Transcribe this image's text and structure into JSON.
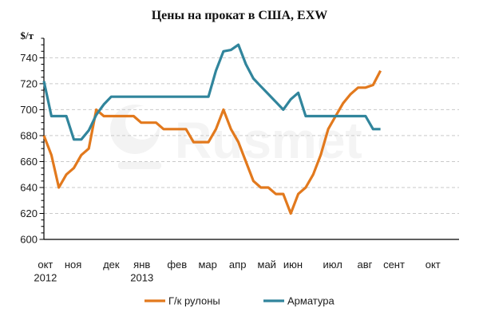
{
  "title": "Цены на прокат в США, EXW",
  "y_axis_unit": "$/т",
  "watermark_text": "Rusmet",
  "legend": [
    {
      "label": "Г/к рулоны",
      "color": "#E2791D"
    },
    {
      "label": "Арматура",
      "color": "#31859C"
    }
  ],
  "colors": {
    "background": "#FFFFFF",
    "gridline": "#C9C9C9",
    "axis": "#000000",
    "text": "#1A1A1A",
    "watermark": "#F3F3F3",
    "hot_rolled_orange": "#E2791D",
    "rebar_teal": "#31859C"
  },
  "chart_data": {
    "type": "line",
    "title": "Цены на прокат в США, EXW",
    "ylabel": "$/т",
    "frequency": "weekly",
    "ylim": [
      600,
      755
    ],
    "y_major_step": 20,
    "y_minor_step": 5,
    "grid": "horizontal dashed at 620-740",
    "legend_position": "bottom",
    "months": [
      {
        "label": "окт",
        "week": 0.2
      },
      {
        "label": "ноя",
        "week": 3.9
      },
      {
        "label": "дек",
        "week": 9.0
      },
      {
        "label": "янв",
        "week": 13.1
      },
      {
        "label": "фев",
        "week": 17.8
      },
      {
        "label": "мар",
        "week": 21.9
      },
      {
        "label": "апр",
        "week": 25.9
      },
      {
        "label": "май",
        "week": 29.8
      },
      {
        "label": "июн",
        "week": 33.3
      },
      {
        "label": "июл",
        "week": 38.6
      },
      {
        "label": "авг",
        "week": 42.9
      },
      {
        "label": "сент",
        "week": 46.8
      },
      {
        "label": "окт",
        "week": 52.0
      }
    ],
    "years": [
      {
        "label": "2012",
        "week": 0.2
      },
      {
        "label": "2013",
        "week": 13.1
      }
    ],
    "series": [
      {
        "name": "Г/к рулоны",
        "color": "#E2791D",
        "values": [
          680,
          665,
          640,
          650,
          655,
          665,
          670,
          700,
          695,
          695,
          695,
          695,
          695,
          690,
          690,
          690,
          685,
          685,
          685,
          685,
          675,
          675,
          675,
          685,
          700,
          685,
          675,
          660,
          645,
          640,
          640,
          635,
          635,
          620,
          635,
          640,
          650,
          665,
          685,
          695,
          705,
          712,
          717,
          717,
          719,
          730
        ]
      },
      {
        "name": "Арматура",
        "color": "#31859C",
        "values": [
          722,
          695,
          695,
          695,
          677,
          677,
          684,
          696,
          704,
          710,
          710,
          710,
          710,
          710,
          710,
          710,
          710,
          710,
          710,
          710,
          710,
          710,
          710,
          730,
          745,
          746,
          750,
          735,
          724,
          718,
          712,
          706,
          700,
          708,
          713,
          695,
          695,
          695,
          695,
          695,
          695,
          695,
          695,
          695,
          685,
          685
        ]
      }
    ]
  }
}
